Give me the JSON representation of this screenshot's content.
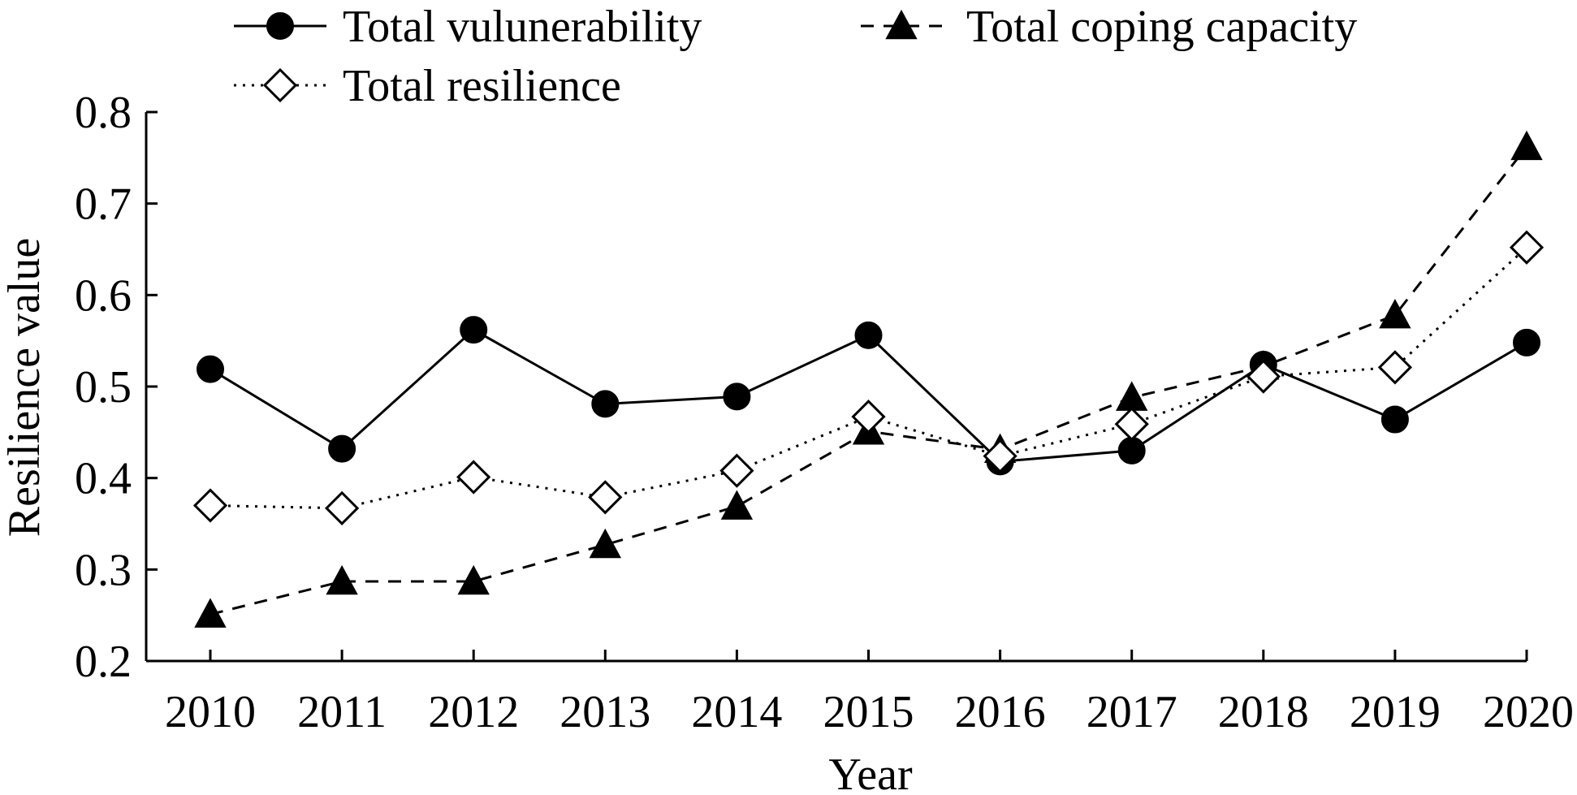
{
  "chart_data": {
    "type": "line",
    "title": "",
    "xlabel": "Year",
    "ylabel": "Resilience value",
    "categories": [
      "2010",
      "2011",
      "2012",
      "2013",
      "2014",
      "2015",
      "2016",
      "2017",
      "2018",
      "2019",
      "2020"
    ],
    "ylim": [
      0.2,
      0.8
    ],
    "yticks": [
      "0.2",
      "0.3",
      "0.4",
      "0.5",
      "0.6",
      "0.7",
      "0.8"
    ],
    "grid": false,
    "legend_position": "top",
    "series": [
      {
        "name": "Total vulunerability",
        "marker": "filled-circle",
        "line_style": "solid",
        "color": "#000000",
        "values": [
          0.519,
          0.432,
          0.562,
          0.481,
          0.489,
          0.556,
          0.418,
          0.43,
          0.524,
          0.464,
          0.548
        ]
      },
      {
        "name": "Total coping capacity",
        "marker": "filled-triangle",
        "line_style": "dashed",
        "color": "#000000",
        "values": [
          0.251,
          0.287,
          0.287,
          0.327,
          0.369,
          0.451,
          0.431,
          0.488,
          0.522,
          0.578,
          0.762
        ]
      },
      {
        "name": "Total resilience",
        "marker": "open-diamond",
        "line_style": "dotted",
        "color": "#000000",
        "values": [
          0.37,
          0.367,
          0.401,
          0.379,
          0.408,
          0.467,
          0.424,
          0.459,
          0.511,
          0.521,
          0.652
        ]
      }
    ]
  }
}
